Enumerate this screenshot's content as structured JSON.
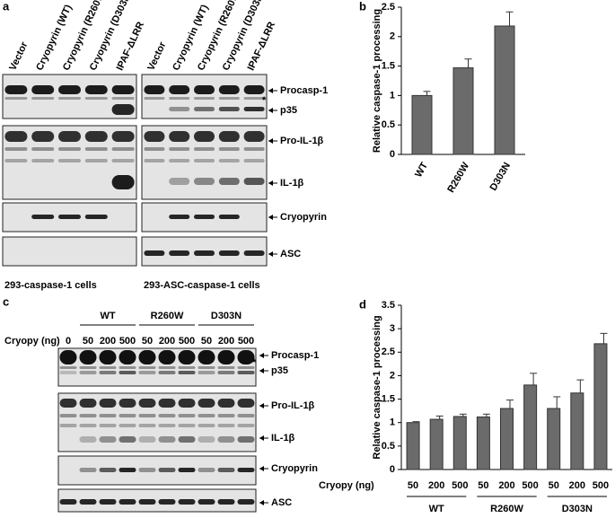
{
  "blots": {
    "a": {
      "label": "a",
      "lanes": [
        "Vector",
        "Cryopyrin (WT)",
        "Cryopyrin (R260W)",
        "Cryopyrin (D303N)",
        "IPAF-ΔLRR"
      ],
      "markers": [
        "Procasp-1",
        "p35",
        "Pro-IL-1β",
        "IL-1β",
        "Cryopyrin",
        "ASC"
      ],
      "star": "*",
      "captions": [
        "293-caspase-1 cells",
        "293-ASC-caspase-1 cells"
      ]
    },
    "c": {
      "label": "c",
      "groups": [
        "WT",
        "R260W",
        "D303N"
      ],
      "dose_label": "Cryopy (ng)",
      "doses": [
        "0",
        "50",
        "200",
        "500",
        "50",
        "200",
        "500",
        "50",
        "200",
        "500"
      ],
      "markers": [
        "Procasp-1",
        "p35",
        "Pro-IL-1β",
        "IL-1β",
        "Cryopyrin",
        "ASC"
      ],
      "star": "*"
    }
  },
  "chart_data": [
    {
      "type": "bar",
      "panel": "b",
      "ylabel": "Relative caspase-1 processing",
      "categories": [
        "WT",
        "R260W",
        "D303N"
      ],
      "values": [
        1.0,
        1.47,
        2.18
      ],
      "errors": [
        0.07,
        0.15,
        0.24
      ],
      "color": "#6b6b6b",
      "ylim": [
        0,
        2.5
      ],
      "yticks": [
        0,
        0.5,
        1,
        1.5,
        2,
        2.5
      ]
    },
    {
      "type": "bar",
      "panel": "d",
      "ylabel": "Relative caspase-1 processing",
      "xlabel": "Cryopy (ng)",
      "categories": [
        "50",
        "200",
        "500",
        "50",
        "200",
        "500",
        "50",
        "200",
        "500"
      ],
      "groups": [
        "WT",
        "R260W",
        "D303N"
      ],
      "values": [
        1.0,
        1.07,
        1.13,
        1.12,
        1.3,
        1.8,
        1.3,
        1.63,
        2.68
      ],
      "errors": [
        0.02,
        0.07,
        0.05,
        0.06,
        0.18,
        0.25,
        0.25,
        0.28,
        0.22
      ],
      "color": "#6b6b6b",
      "ylim": [
        0,
        3.5
      ],
      "yticks": [
        0,
        0.5,
        1,
        1.5,
        2,
        2.5,
        3,
        3.5
      ]
    }
  ]
}
